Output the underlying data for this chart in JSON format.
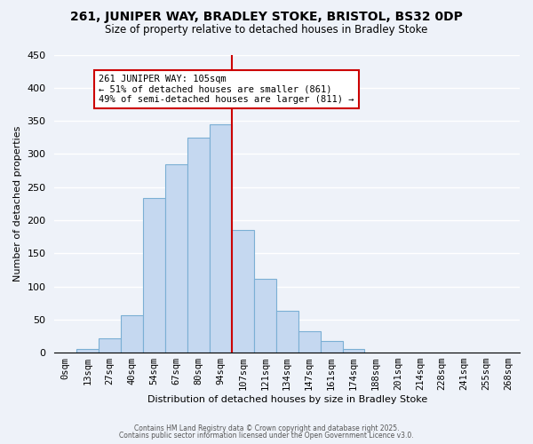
{
  "title": "261, JUNIPER WAY, BRADLEY STOKE, BRISTOL, BS32 0DP",
  "subtitle": "Size of property relative to detached houses in Bradley Stoke",
  "xlabel": "Distribution of detached houses by size in Bradley Stoke",
  "ylabel": "Number of detached properties",
  "bin_labels": [
    "0sqm",
    "13sqm",
    "27sqm",
    "40sqm",
    "54sqm",
    "67sqm",
    "80sqm",
    "94sqm",
    "107sqm",
    "121sqm",
    "134sqm",
    "147sqm",
    "161sqm",
    "174sqm",
    "188sqm",
    "201sqm",
    "214sqm",
    "228sqm",
    "241sqm",
    "255sqm",
    "268sqm"
  ],
  "bar_values": [
    0,
    6,
    21,
    57,
    234,
    285,
    325,
    345,
    185,
    111,
    63,
    32,
    18,
    5,
    0,
    0,
    0,
    0,
    0,
    0,
    0
  ],
  "bar_color": "#c5d8f0",
  "bar_edge_color": "#7bafd4",
  "vline_x_index": 8,
  "vline_color": "#cc0000",
  "annotation_title": "261 JUNIPER WAY: 105sqm",
  "annotation_line1": "← 51% of detached houses are smaller (861)",
  "annotation_line2": "49% of semi-detached houses are larger (811) →",
  "annotation_box_color": "#ffffff",
  "annotation_box_edge": "#cc0000",
  "ylim": [
    0,
    450
  ],
  "yticks": [
    0,
    50,
    100,
    150,
    200,
    250,
    300,
    350,
    400,
    450
  ],
  "footer1": "Contains HM Land Registry data © Crown copyright and database right 2025.",
  "footer2": "Contains public sector information licensed under the Open Government Licence v3.0.",
  "bg_color": "#eef2f9",
  "grid_color": "#ffffff"
}
